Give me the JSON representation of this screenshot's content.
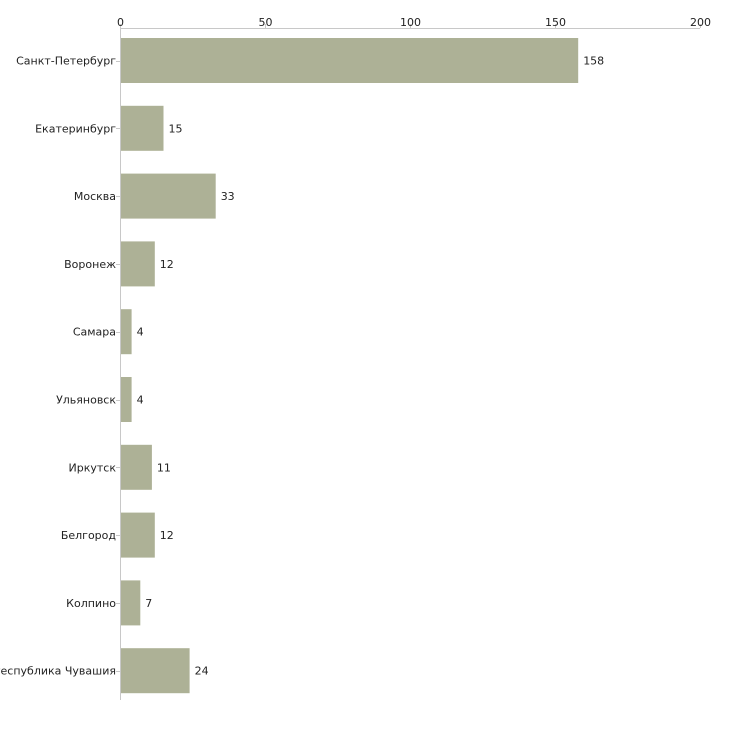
{
  "chart_data": {
    "type": "bar",
    "orientation": "horizontal",
    "title": "",
    "xlabel": "",
    "ylabel": "",
    "xlim": [
      0,
      200
    ],
    "xticks": [
      0,
      50,
      100,
      150,
      200
    ],
    "grid": false,
    "bar_color": "#adb196",
    "categories": [
      "Санкт-Петербург",
      "Екатеринбург",
      "Москва",
      "Воронеж",
      "Самара",
      "Ульяновск",
      "Иркутск",
      "Белгород",
      "Колпино",
      "Республика Чувашия"
    ],
    "values": [
      158,
      15,
      33,
      12,
      4,
      4,
      11,
      12,
      7,
      24
    ]
  }
}
